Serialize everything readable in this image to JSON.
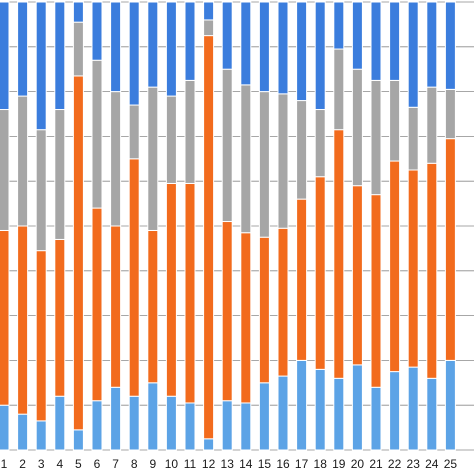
{
  "chart_data": {
    "type": "bar",
    "stacked": true,
    "normalized": true,
    "categories": [
      "1",
      "2",
      "3",
      "4",
      "5",
      "6",
      "7",
      "8",
      "9",
      "10",
      "11",
      "12",
      "13",
      "14",
      "15",
      "16",
      "17",
      "18",
      "19",
      "20",
      "21",
      "22",
      "23",
      "24",
      "25"
    ],
    "ylim": [
      0,
      100
    ],
    "grid": "horizontal",
    "legend": "none",
    "series": [
      {
        "color": "#5ca3e6",
        "values": [
          10,
          8,
          6.5,
          12,
          4.5,
          11,
          14,
          12,
          15,
          12,
          10.5,
          2.5,
          11,
          10.5,
          15,
          16.5,
          20,
          18,
          16,
          19,
          14,
          17.5,
          18.5,
          16,
          20
        ]
      },
      {
        "color": "#f26b1d",
        "values": [
          39,
          42,
          38,
          35,
          79,
          43,
          36,
          53,
          34,
          47.5,
          49,
          90,
          40,
          38,
          32.5,
          33,
          36,
          43,
          55.5,
          40,
          43,
          47,
          44,
          48,
          49.5
        ]
      },
      {
        "color": "#a6a6a6",
        "values": [
          27,
          29,
          27,
          29,
          12,
          33,
          30,
          12,
          32,
          19.5,
          23,
          3.5,
          34,
          33,
          32.5,
          30,
          22,
          15,
          18,
          26,
          25.5,
          18,
          14,
          17,
          11
        ]
      },
      {
        "color": "#3b7ddd",
        "values": [
          24,
          21,
          28.5,
          24,
          4.5,
          13,
          20,
          23,
          19,
          21,
          17.5,
          4,
          15,
          18.5,
          20,
          20.5,
          22,
          24,
          10.5,
          15,
          17.5,
          17.5,
          23.5,
          19,
          19.5
        ]
      }
    ]
  }
}
